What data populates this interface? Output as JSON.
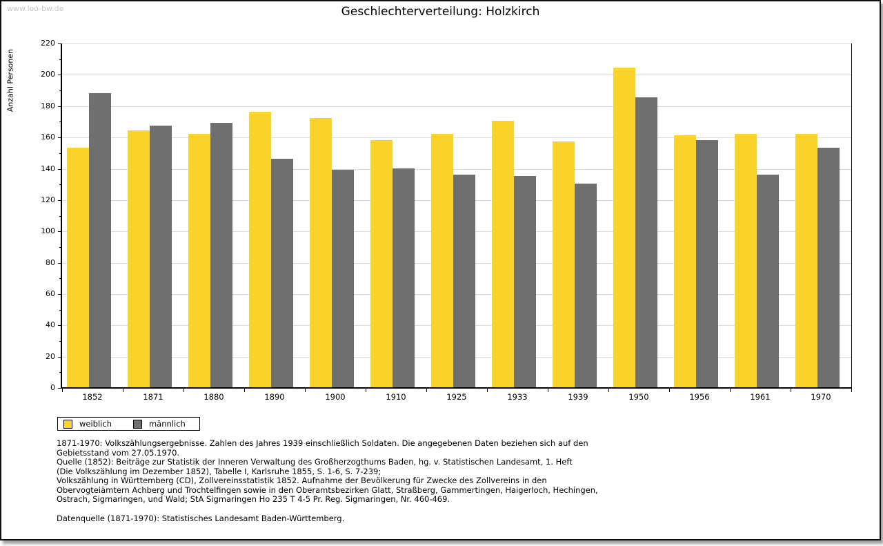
{
  "page": {
    "watermark": "www.leo-bw.de",
    "title": "Geschlechterverteilung: Holzkirch"
  },
  "chart_data": {
    "type": "bar",
    "title": "Geschlechterverteilung: Holzkirch",
    "xlabel": "",
    "ylabel": "Anzahl Personen",
    "ylim": [
      0,
      220
    ],
    "ytick_step": 20,
    "yminor_step": 10,
    "grid": true,
    "legend_position": "bottom-left",
    "categories": [
      "1852",
      "1871",
      "1880",
      "1890",
      "1900",
      "1910",
      "1925",
      "1933",
      "1939",
      "1950",
      "1956",
      "1961",
      "1970"
    ],
    "series": [
      {
        "name": "weiblich",
        "color": "#fcd32b",
        "values": [
          153,
          164,
          162,
          176,
          172,
          158,
          162,
          170,
          157,
          204,
          161,
          162,
          162
        ]
      },
      {
        "name": "männlich",
        "color": "#6f6f6f",
        "values": [
          188,
          167,
          169,
          146,
          139,
          140,
          136,
          135,
          130,
          185,
          158,
          136,
          153
        ]
      }
    ]
  },
  "colors": {
    "weiblich": "#fcd32b",
    "maennlich": "#6f6f6f",
    "gridline": "#dcdcdc",
    "watermark": "#c6c6c6"
  },
  "footnotes": {
    "lines": [
      "1871-1970: Volkszählungsergebnisse. Zahlen des Jahres 1939 einschließlich Soldaten. Die angegebenen Daten beziehen sich auf den",
      "Gebietsstand vom 27.05.1970.",
      "Quelle (1852): Beiträge zur Statistik der Inneren Verwaltung des Großherzogthums Baden, hg. v. Statistischen Landesamt, 1. Heft",
      "(Die Volkszählung im Dezember 1852), Tabelle I, Karlsruhe 1855, S. 1-6, S. 7-239;",
      "Volkszählung in Württemberg (CD), Zollvereinsstatistik 1852. Aufnahme der Bevölkerung für Zwecke des Zollvereins in den",
      "Obervogteiämtern Achberg und Trochtelfingen sowie in den Oberamtsbezirken Glatt, Straßberg, Gammertingen, Haigerloch, Hechingen,",
      "Ostrach, Sigmaringen, und Wald; StA Sigmaringen Ho 235 T 4-5 Pr. Reg. Sigmaringen, Nr. 460-469."
    ],
    "datasource": "Datenquelle (1871-1970): Statistisches Landesamt Baden-Württemberg."
  }
}
